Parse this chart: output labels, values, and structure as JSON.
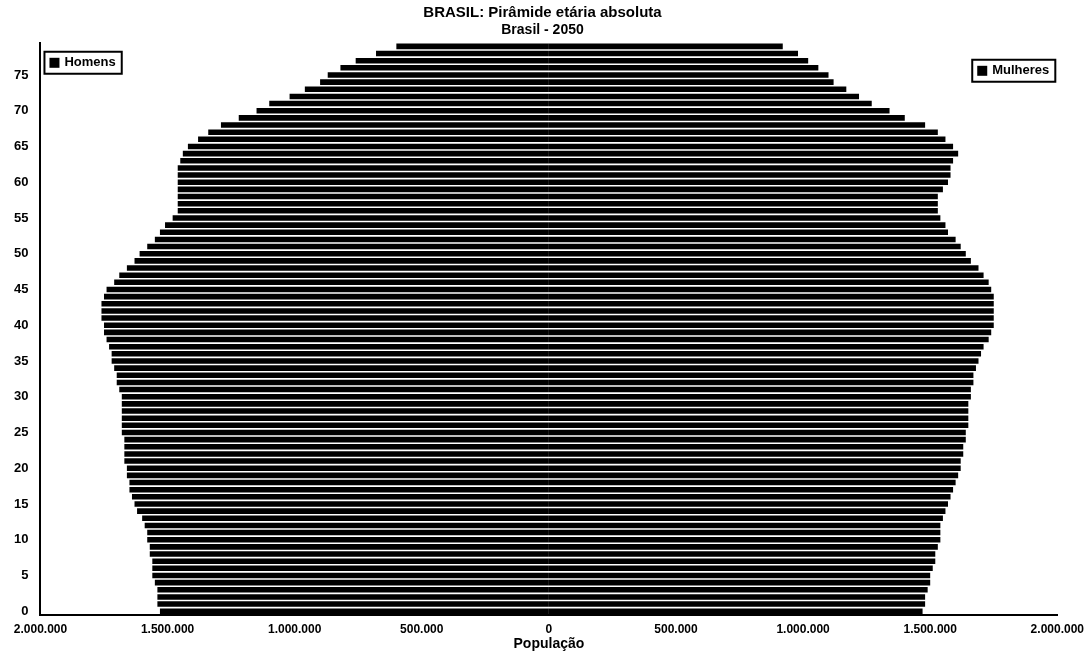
{
  "chart_data": {
    "type": "bar",
    "orientation": "horizontal",
    "stacked": true,
    "title": "BRASIL: Pirâmide etária absoluta",
    "subtitle": "Brasil - 2050",
    "xlabel": "População",
    "categories": [
      null,
      null,
      null,
      null,
      "75",
      null,
      null,
      null,
      null,
      "70",
      null,
      null,
      null,
      null,
      "65",
      null,
      null,
      null,
      null,
      "60",
      null,
      null,
      null,
      null,
      "55",
      null,
      null,
      null,
      null,
      "50",
      null,
      null,
      null,
      null,
      "45",
      null,
      null,
      null,
      null,
      "40",
      null,
      null,
      null,
      null,
      "35",
      null,
      null,
      null,
      null,
      "30",
      null,
      null,
      null,
      null,
      "25",
      null,
      null,
      null,
      null,
      "20",
      null,
      null,
      null,
      null,
      "15",
      null,
      null,
      null,
      null,
      "10",
      null,
      null,
      null,
      null,
      "5",
      null,
      null,
      null,
      null,
      "0"
    ],
    "series": [
      {
        "name": "Homens",
        "color": "#000000",
        "values": [
          -600000,
          -680000,
          -760000,
          -820000,
          -870000,
          -900000,
          -960000,
          -1020000,
          -1100000,
          -1150000,
          -1220000,
          -1290000,
          -1340000,
          -1380000,
          -1420000,
          -1440000,
          -1450000,
          -1460000,
          -1460000,
          -1460000,
          -1460000,
          -1460000,
          -1460000,
          -1460000,
          -1480000,
          -1510000,
          -1530000,
          -1550000,
          -1580000,
          -1610000,
          -1630000,
          -1660000,
          -1690000,
          -1710000,
          -1740000,
          -1750000,
          -1760000,
          -1760000,
          -1760000,
          -1750000,
          -1750000,
          -1740000,
          -1730000,
          -1720000,
          -1720000,
          -1710000,
          -1700000,
          -1700000,
          -1690000,
          -1680000,
          -1680000,
          -1680000,
          -1680000,
          -1680000,
          -1680000,
          -1670000,
          -1670000,
          -1670000,
          -1670000,
          -1660000,
          -1660000,
          -1650000,
          -1650000,
          -1640000,
          -1630000,
          -1620000,
          -1600000,
          -1590000,
          -1580000,
          -1580000,
          -1570000,
          -1570000,
          -1560000,
          -1560000,
          -1560000,
          -1550000,
          -1540000,
          -1540000,
          -1540000,
          -1530000
        ]
      },
      {
        "name": "Mulheres",
        "color": "#000000",
        "values": [
          920000,
          980000,
          1020000,
          1060000,
          1100000,
          1120000,
          1170000,
          1220000,
          1270000,
          1340000,
          1400000,
          1480000,
          1530000,
          1560000,
          1590000,
          1610000,
          1590000,
          1580000,
          1580000,
          1570000,
          1550000,
          1530000,
          1530000,
          1530000,
          1540000,
          1560000,
          1570000,
          1600000,
          1620000,
          1640000,
          1660000,
          1690000,
          1710000,
          1730000,
          1740000,
          1750000,
          1750000,
          1750000,
          1750000,
          1750000,
          1740000,
          1730000,
          1710000,
          1700000,
          1690000,
          1680000,
          1670000,
          1670000,
          1660000,
          1660000,
          1650000,
          1650000,
          1650000,
          1650000,
          1640000,
          1640000,
          1630000,
          1630000,
          1620000,
          1620000,
          1610000,
          1600000,
          1590000,
          1580000,
          1570000,
          1560000,
          1550000,
          1540000,
          1540000,
          1540000,
          1530000,
          1520000,
          1520000,
          1510000,
          1500000,
          1500000,
          1490000,
          1480000,
          1480000,
          1470000
        ]
      }
    ],
    "xlim": [
      -2000000,
      2000000
    ],
    "xticks": [
      {
        "value": -2000000,
        "label": "2.000.000"
      },
      {
        "value": -1500000,
        "label": "1.500.000"
      },
      {
        "value": -1000000,
        "label": "1.000.000"
      },
      {
        "value": -500000,
        "label": "500.000"
      },
      0,
      {
        "value": 500000,
        "label": "500.000"
      },
      {
        "value": 1000000,
        "label": "1.000.000"
      },
      {
        "value": 1500000,
        "label": "1.500.000"
      },
      {
        "value": 2000000,
        "label": "2.000.000"
      }
    ],
    "grid": false,
    "legend": "top"
  }
}
